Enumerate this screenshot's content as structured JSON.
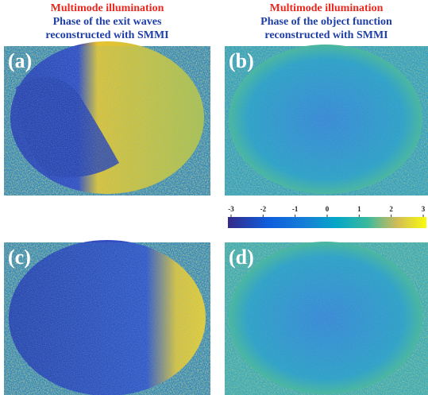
{
  "columns": [
    {
      "line1": "Multimode illumination",
      "line2": "Phase of the exit waves",
      "line3": "reconstructed with SMMI"
    },
    {
      "line1": "Multimode illumination",
      "line2": "Phase of the object function",
      "line3": "reconstructed with SMMI"
    }
  ],
  "panels": [
    {
      "label": "(a)"
    },
    {
      "label": "(b)"
    },
    {
      "label": "(c)"
    },
    {
      "label": "(d)"
    }
  ],
  "colorbar": {
    "range": [
      -3,
      3
    ],
    "ticks": [
      -3,
      -2,
      -1,
      0,
      1,
      2,
      3
    ]
  }
}
